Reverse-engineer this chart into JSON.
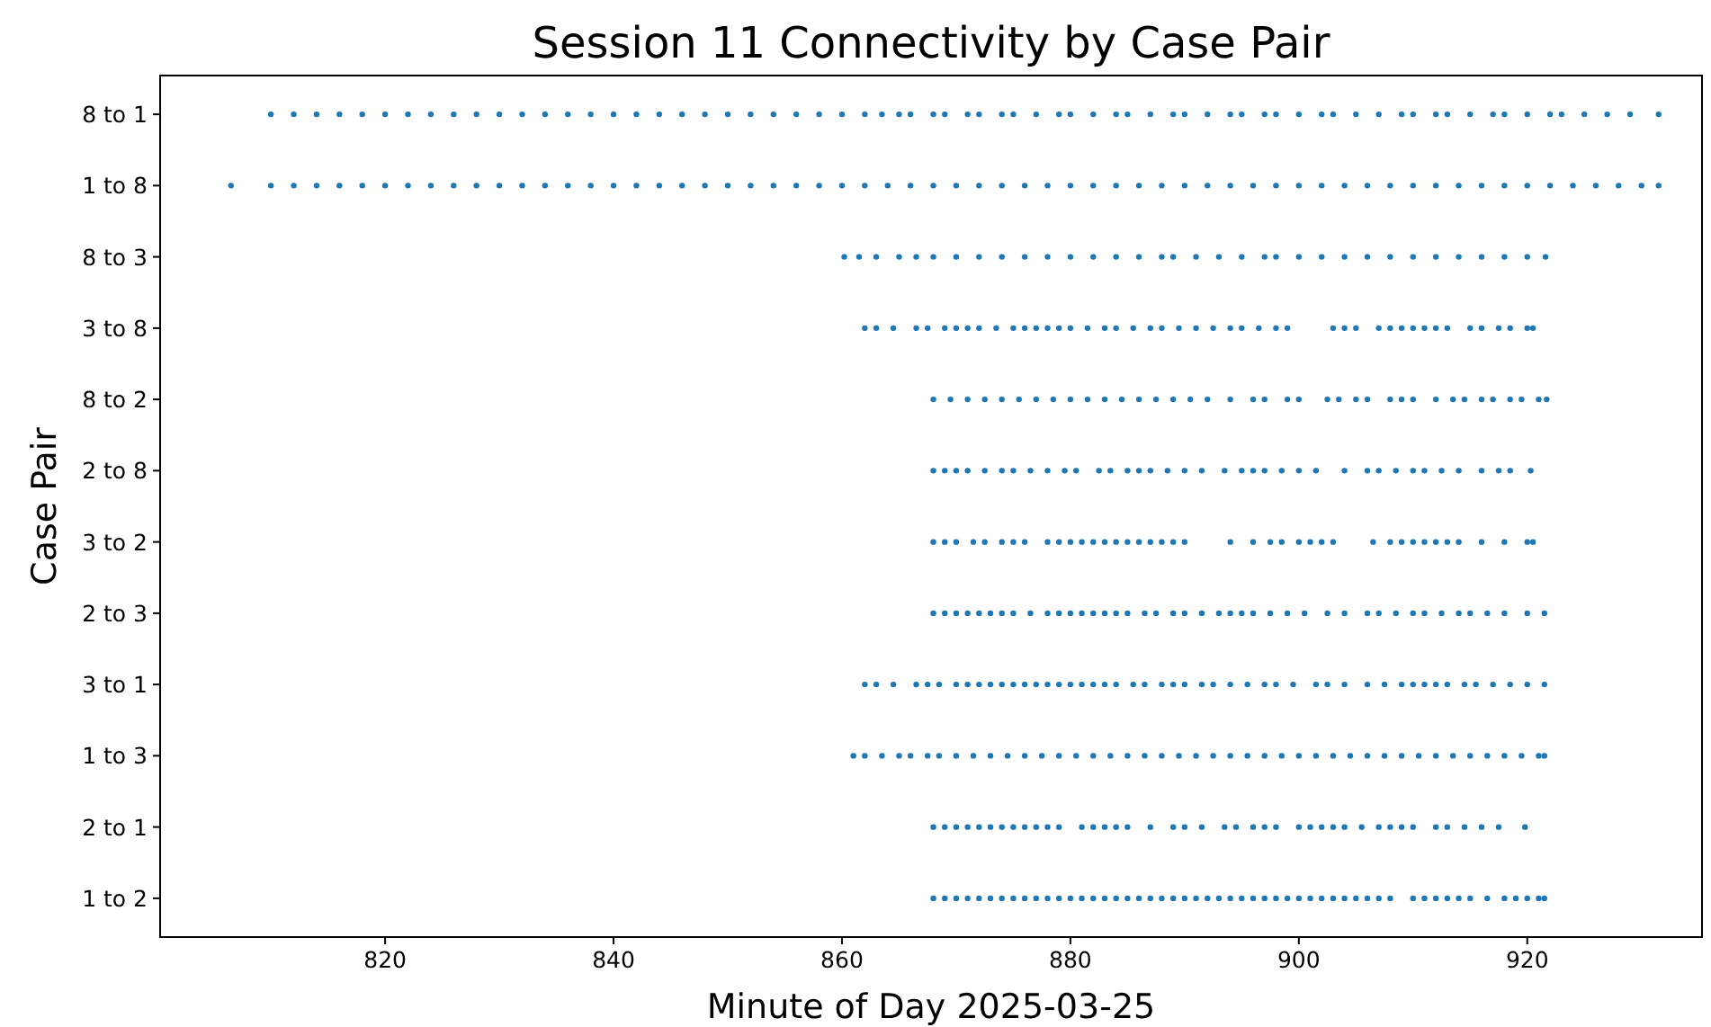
{
  "chart_data": {
    "type": "scatter",
    "title": "Session 11 Connectivity by Case Pair",
    "xlabel": "Minute of Day 2025-03-25",
    "ylabel": "Case Pair",
    "marker": "circle",
    "grid": false,
    "orientation": "horizontal",
    "categories": [
      "8 to 1",
      "1 to 8",
      "8 to 3",
      "3 to 8",
      "8 to 2",
      "2 to 8",
      "3 to 2",
      "2 to 3",
      "3 to 1",
      "1 to 3",
      "2 to 1",
      "1 to 2"
    ],
    "xlim": [
      800.3,
      935.3
    ],
    "xticks": [
      820,
      840,
      860,
      880,
      900,
      920
    ],
    "series": [
      {
        "color": "#1f77b4",
        "values": [
          810,
          812,
          814,
          816,
          818,
          820,
          822,
          824,
          826,
          828,
          830,
          832,
          834,
          836,
          838,
          840,
          842,
          844,
          846,
          848,
          850,
          852,
          854,
          856,
          858,
          860,
          862,
          863.5,
          865,
          866,
          868,
          869,
          871,
          872,
          874,
          875,
          877,
          879,
          880,
          882,
          884,
          885,
          887,
          889,
          890,
          892,
          894,
          895,
          897,
          898,
          900,
          902,
          903,
          905,
          907,
          909,
          910,
          912,
          913,
          915,
          917,
          918,
          920,
          922,
          923,
          925,
          927,
          929,
          931.5
        ],
        "x": [
          "8 to 1",
          "8 to 1",
          "8 to 1",
          "8 to 1",
          "8 to 1",
          "8 to 1",
          "8 to 1",
          "8 to 1",
          "8 to 1",
          "8 to 1",
          "8 to 1",
          "8 to 1",
          "8 to 1",
          "8 to 1",
          "8 to 1",
          "8 to 1",
          "8 to 1",
          "8 to 1",
          "8 to 1",
          "8 to 1",
          "8 to 1",
          "8 to 1",
          "8 to 1",
          "8 to 1",
          "8 to 1",
          "8 to 1",
          "8 to 1",
          "8 to 1",
          "8 to 1",
          "8 to 1",
          "8 to 1",
          "8 to 1",
          "8 to 1",
          "8 to 1",
          "8 to 1",
          "8 to 1",
          "8 to 1",
          "8 to 1",
          "8 to 1",
          "8 to 1",
          "8 to 1",
          "8 to 1",
          "8 to 1",
          "8 to 1",
          "8 to 1",
          "8 to 1",
          "8 to 1",
          "8 to 1",
          "8 to 1",
          "8 to 1",
          "8 to 1",
          "8 to 1",
          "8 to 1",
          "8 to 1",
          "8 to 1",
          "8 to 1",
          "8 to 1",
          "8 to 1",
          "8 to 1",
          "8 to 1",
          "8 to 1",
          "8 to 1",
          "8 to 1",
          "8 to 1",
          "8 to 1",
          "8 to 1",
          "8 to 1",
          "8 to 1",
          "8 to 1"
        ]
      },
      {
        "color": "#1f77b4",
        "values": [
          806.5,
          810,
          812,
          814,
          816,
          818,
          820,
          822,
          824,
          826,
          828,
          830,
          832,
          834,
          836,
          838,
          840,
          842,
          844,
          846,
          848,
          850,
          852,
          854,
          856,
          858,
          860,
          862,
          864,
          866,
          868,
          870,
          872,
          874,
          876,
          878,
          880,
          882,
          884,
          886,
          888,
          890,
          892,
          894,
          896,
          898,
          900,
          902,
          904,
          906,
          908,
          910,
          912,
          914,
          916,
          918,
          920,
          922,
          924,
          926,
          928,
          930,
          931.5
        ],
        "x": [
          "1 to 8",
          "1 to 8",
          "1 to 8",
          "1 to 8",
          "1 to 8",
          "1 to 8",
          "1 to 8",
          "1 to 8",
          "1 to 8",
          "1 to 8",
          "1 to 8",
          "1 to 8",
          "1 to 8",
          "1 to 8",
          "1 to 8",
          "1 to 8",
          "1 to 8",
          "1 to 8",
          "1 to 8",
          "1 to 8",
          "1 to 8",
          "1 to 8",
          "1 to 8",
          "1 to 8",
          "1 to 8",
          "1 to 8",
          "1 to 8",
          "1 to 8",
          "1 to 8",
          "1 to 8",
          "1 to 8",
          "1 to 8",
          "1 to 8",
          "1 to 8",
          "1 to 8",
          "1 to 8",
          "1 to 8",
          "1 to 8",
          "1 to 8",
          "1 to 8",
          "1 to 8",
          "1 to 8",
          "1 to 8",
          "1 to 8",
          "1 to 8",
          "1 to 8",
          "1 to 8",
          "1 to 8",
          "1 to 8",
          "1 to 8",
          "1 to 8",
          "1 to 8",
          "1 to 8",
          "1 to 8",
          "1 to 8",
          "1 to 8",
          "1 to 8",
          "1 to 8",
          "1 to 8",
          "1 to 8",
          "1 to 8",
          "1 to 8",
          "1 to 8"
        ]
      },
      {
        "color": "#1f77b4",
        "values": [
          860.2,
          861.5,
          863,
          865,
          866.5,
          868,
          870,
          872,
          874,
          876,
          878,
          880,
          882,
          884,
          886,
          888,
          889,
          891,
          893,
          895,
          897,
          898,
          900,
          902,
          904,
          906,
          908,
          910,
          912,
          914,
          916,
          918,
          920,
          921.6
        ],
        "x": [
          "8 to 3",
          "8 to 3",
          "8 to 3",
          "8 to 3",
          "8 to 3",
          "8 to 3",
          "8 to 3",
          "8 to 3",
          "8 to 3",
          "8 to 3",
          "8 to 3",
          "8 to 3",
          "8 to 3",
          "8 to 3",
          "8 to 3",
          "8 to 3",
          "8 to 3",
          "8 to 3",
          "8 to 3",
          "8 to 3",
          "8 to 3",
          "8 to 3",
          "8 to 3",
          "8 to 3",
          "8 to 3",
          "8 to 3",
          "8 to 3",
          "8 to 3",
          "8 to 3",
          "8 to 3",
          "8 to 3",
          "8 to 3",
          "8 to 3",
          "8 to 3"
        ]
      },
      {
        "color": "#1f77b4",
        "values": [
          862,
          863,
          864.5,
          866.5,
          867.5,
          869,
          870,
          871,
          872,
          873.5,
          875,
          876,
          877,
          878,
          879,
          880,
          881.5,
          883,
          884,
          885.5,
          887,
          888,
          889.5,
          891,
          892.5,
          894,
          895,
          896.5,
          898,
          899,
          903,
          904,
          905,
          907,
          908,
          909,
          910,
          911,
          912,
          913,
          915,
          916,
          917.5,
          918.5,
          920,
          920.5
        ],
        "x": [
          "3 to 8",
          "3 to 8",
          "3 to 8",
          "3 to 8",
          "3 to 8",
          "3 to 8",
          "3 to 8",
          "3 to 8",
          "3 to 8",
          "3 to 8",
          "3 to 8",
          "3 to 8",
          "3 to 8",
          "3 to 8",
          "3 to 8",
          "3 to 8",
          "3 to 8",
          "3 to 8",
          "3 to 8",
          "3 to 8",
          "3 to 8",
          "3 to 8",
          "3 to 8",
          "3 to 8",
          "3 to 8",
          "3 to 8",
          "3 to 8",
          "3 to 8",
          "3 to 8",
          "3 to 8",
          "3 to 8",
          "3 to 8",
          "3 to 8",
          "3 to 8",
          "3 to 8",
          "3 to 8",
          "3 to 8",
          "3 to 8",
          "3 to 8",
          "3 to 8",
          "3 to 8",
          "3 to 8",
          "3 to 8",
          "3 to 8",
          "3 to 8",
          "3 to 8"
        ]
      },
      {
        "color": "#1f77b4",
        "values": [
          868,
          869.5,
          871,
          872.5,
          874,
          875.5,
          877,
          878.5,
          880,
          881.5,
          883,
          884.5,
          886,
          887.5,
          889,
          890.5,
          892,
          894,
          896,
          897,
          899,
          900,
          902.5,
          903.5,
          905,
          906,
          908,
          909,
          910,
          912,
          913.5,
          914.5,
          916,
          917,
          918.5,
          919.5,
          921,
          921.7
        ],
        "x": [
          "8 to 2",
          "8 to 2",
          "8 to 2",
          "8 to 2",
          "8 to 2",
          "8 to 2",
          "8 to 2",
          "8 to 2",
          "8 to 2",
          "8 to 2",
          "8 to 2",
          "8 to 2",
          "8 to 2",
          "8 to 2",
          "8 to 2",
          "8 to 2",
          "8 to 2",
          "8 to 2",
          "8 to 2",
          "8 to 2",
          "8 to 2",
          "8 to 2",
          "8 to 2",
          "8 to 2",
          "8 to 2",
          "8 to 2",
          "8 to 2",
          "8 to 2",
          "8 to 2",
          "8 to 2",
          "8 to 2",
          "8 to 2",
          "8 to 2",
          "8 to 2",
          "8 to 2",
          "8 to 2",
          "8 to 2",
          "8 to 2"
        ]
      },
      {
        "color": "#1f77b4",
        "values": [
          868,
          869,
          870,
          871,
          872.5,
          874,
          875,
          876.5,
          878,
          879.5,
          880.5,
          882.5,
          883.5,
          885,
          886,
          887,
          888.5,
          890,
          891.5,
          893.5,
          895,
          896,
          897,
          898.5,
          900,
          901.5,
          904,
          906,
          907,
          908.5,
          910,
          911,
          912.5,
          914,
          916,
          917.5,
          918.5,
          920.3
        ],
        "x": [
          "2 to 8",
          "2 to 8",
          "2 to 8",
          "2 to 8",
          "2 to 8",
          "2 to 8",
          "2 to 8",
          "2 to 8",
          "2 to 8",
          "2 to 8",
          "2 to 8",
          "2 to 8",
          "2 to 8",
          "2 to 8",
          "2 to 8",
          "2 to 8",
          "2 to 8",
          "2 to 8",
          "2 to 8",
          "2 to 8",
          "2 to 8",
          "2 to 8",
          "2 to 8",
          "2 to 8",
          "2 to 8",
          "2 to 8",
          "2 to 8",
          "2 to 8",
          "2 to 8",
          "2 to 8",
          "2 to 8",
          "2 to 8",
          "2 to 8",
          "2 to 8",
          "2 to 8",
          "2 to 8",
          "2 to 8",
          "2 to 8"
        ]
      },
      {
        "color": "#1f77b4",
        "values": [
          868,
          869,
          870,
          871.5,
          872.5,
          874,
          875,
          876,
          878,
          879,
          880,
          881,
          882,
          883,
          884,
          885,
          886,
          887,
          888,
          889,
          890,
          894,
          896,
          897.5,
          898.5,
          900,
          901,
          902,
          903,
          906.5,
          908,
          909,
          910,
          911,
          912,
          913,
          914,
          916,
          918,
          920,
          920.5
        ],
        "x": [
          "3 to 2",
          "3 to 2",
          "3 to 2",
          "3 to 2",
          "3 to 2",
          "3 to 2",
          "3 to 2",
          "3 to 2",
          "3 to 2",
          "3 to 2",
          "3 to 2",
          "3 to 2",
          "3 to 2",
          "3 to 2",
          "3 to 2",
          "3 to 2",
          "3 to 2",
          "3 to 2",
          "3 to 2",
          "3 to 2",
          "3 to 2",
          "3 to 2",
          "3 to 2",
          "3 to 2",
          "3 to 2",
          "3 to 2",
          "3 to 2",
          "3 to 2",
          "3 to 2",
          "3 to 2",
          "3 to 2",
          "3 to 2",
          "3 to 2",
          "3 to 2",
          "3 to 2",
          "3 to 2",
          "3 to 2",
          "3 to 2",
          "3 to 2",
          "3 to 2",
          "3 to 2"
        ]
      },
      {
        "color": "#1f77b4",
        "values": [
          868,
          869,
          870,
          871,
          872,
          873,
          874,
          875,
          876.5,
          878,
          879,
          880,
          881,
          882,
          883,
          884,
          885,
          886.5,
          887.5,
          889,
          890,
          891.5,
          893,
          894,
          895,
          896,
          897.5,
          899,
          900.5,
          902.5,
          904,
          906,
          907,
          908.5,
          910,
          911,
          912.5,
          914,
          915,
          916.5,
          918,
          920,
          921.5
        ],
        "x": [
          "2 to 3",
          "2 to 3",
          "2 to 3",
          "2 to 3",
          "2 to 3",
          "2 to 3",
          "2 to 3",
          "2 to 3",
          "2 to 3",
          "2 to 3",
          "2 to 3",
          "2 to 3",
          "2 to 3",
          "2 to 3",
          "2 to 3",
          "2 to 3",
          "2 to 3",
          "2 to 3",
          "2 to 3",
          "2 to 3",
          "2 to 3",
          "2 to 3",
          "2 to 3",
          "2 to 3",
          "2 to 3",
          "2 to 3",
          "2 to 3",
          "2 to 3",
          "2 to 3",
          "2 to 3",
          "2 to 3",
          "2 to 3",
          "2 to 3",
          "2 to 3",
          "2 to 3",
          "2 to 3",
          "2 to 3",
          "2 to 3",
          "2 to 3",
          "2 to 3",
          "2 to 3",
          "2 to 3",
          "2 to 3"
        ]
      },
      {
        "color": "#1f77b4",
        "values": [
          862,
          863,
          864.5,
          866.5,
          867.5,
          868.5,
          870,
          871,
          872,
          873,
          874,
          875,
          876,
          877,
          878,
          879,
          880,
          881,
          882,
          883,
          884,
          885.5,
          886.5,
          888,
          889,
          890,
          891.5,
          892.5,
          894,
          895.5,
          897,
          898,
          899.5,
          901.5,
          902.5,
          904,
          906,
          907.5,
          909,
          910,
          911,
          912,
          913,
          914.5,
          915.5,
          917,
          918.5,
          920,
          921.5
        ],
        "x": [
          "3 to 1",
          "3 to 1",
          "3 to 1",
          "3 to 1",
          "3 to 1",
          "3 to 1",
          "3 to 1",
          "3 to 1",
          "3 to 1",
          "3 to 1",
          "3 to 1",
          "3 to 1",
          "3 to 1",
          "3 to 1",
          "3 to 1",
          "3 to 1",
          "3 to 1",
          "3 to 1",
          "3 to 1",
          "3 to 1",
          "3 to 1",
          "3 to 1",
          "3 to 1",
          "3 to 1",
          "3 to 1",
          "3 to 1",
          "3 to 1",
          "3 to 1",
          "3 to 1",
          "3 to 1",
          "3 to 1",
          "3 to 1",
          "3 to 1",
          "3 to 1",
          "3 to 1",
          "3 to 1",
          "3 to 1",
          "3 to 1",
          "3 to 1",
          "3 to 1",
          "3 to 1",
          "3 to 1",
          "3 to 1",
          "3 to 1",
          "3 to 1",
          "3 to 1",
          "3 to 1",
          "3 to 1",
          "3 to 1"
        ]
      },
      {
        "color": "#1f77b4",
        "values": [
          861,
          862,
          863.5,
          865,
          866,
          867.5,
          868.5,
          870,
          871.5,
          873,
          874.5,
          876,
          877.5,
          879,
          880.5,
          882,
          883.5,
          885,
          886.5,
          888,
          889.5,
          891,
          892.5,
          894,
          895.5,
          897,
          898.5,
          900,
          901.5,
          903,
          904.5,
          906,
          907.5,
          909,
          910.5,
          912,
          913.5,
          915,
          916.5,
          918,
          919.5,
          921,
          921.5
        ],
        "x": [
          "1 to 3",
          "1 to 3",
          "1 to 3",
          "1 to 3",
          "1 to 3",
          "1 to 3",
          "1 to 3",
          "1 to 3",
          "1 to 3",
          "1 to 3",
          "1 to 3",
          "1 to 3",
          "1 to 3",
          "1 to 3",
          "1 to 3",
          "1 to 3",
          "1 to 3",
          "1 to 3",
          "1 to 3",
          "1 to 3",
          "1 to 3",
          "1 to 3",
          "1 to 3",
          "1 to 3",
          "1 to 3",
          "1 to 3",
          "1 to 3",
          "1 to 3",
          "1 to 3",
          "1 to 3",
          "1 to 3",
          "1 to 3",
          "1 to 3",
          "1 to 3",
          "1 to 3",
          "1 to 3",
          "1 to 3",
          "1 to 3",
          "1 to 3",
          "1 to 3",
          "1 to 3",
          "1 to 3",
          "1 to 3"
        ]
      },
      {
        "color": "#1f77b4",
        "values": [
          868,
          869,
          870,
          871,
          872,
          873,
          874,
          875,
          876,
          877,
          878,
          879,
          881,
          882,
          883,
          884,
          885,
          887,
          889,
          890,
          891.5,
          893.5,
          894.5,
          896,
          897,
          898,
          900,
          901,
          902,
          903,
          904,
          905.5,
          907,
          908,
          909,
          910,
          912,
          913,
          914.5,
          916,
          917.5,
          919.8
        ],
        "x": [
          "2 to 1",
          "2 to 1",
          "2 to 1",
          "2 to 1",
          "2 to 1",
          "2 to 1",
          "2 to 1",
          "2 to 1",
          "2 to 1",
          "2 to 1",
          "2 to 1",
          "2 to 1",
          "2 to 1",
          "2 to 1",
          "2 to 1",
          "2 to 1",
          "2 to 1",
          "2 to 1",
          "2 to 1",
          "2 to 1",
          "2 to 1",
          "2 to 1",
          "2 to 1",
          "2 to 1",
          "2 to 1",
          "2 to 1",
          "2 to 1",
          "2 to 1",
          "2 to 1",
          "2 to 1",
          "2 to 1",
          "2 to 1",
          "2 to 1",
          "2 to 1",
          "2 to 1",
          "2 to 1",
          "2 to 1",
          "2 to 1",
          "2 to 1",
          "2 to 1",
          "2 to 1",
          "2 to 1"
        ]
      },
      {
        "color": "#1f77b4",
        "values": [
          868,
          869,
          870,
          871,
          872,
          873,
          874,
          875,
          876,
          877,
          878,
          879,
          880,
          881,
          882,
          883,
          884,
          885,
          886,
          887,
          888,
          889,
          890,
          891,
          892,
          893,
          894,
          895,
          896,
          897,
          898,
          899,
          900,
          901,
          902,
          903,
          904,
          905,
          906,
          907,
          908,
          910,
          911,
          912,
          913,
          914,
          915,
          916.5,
          918,
          919,
          920,
          921,
          921.5
        ],
        "x": [
          "1 to 2",
          "1 to 2",
          "1 to 2",
          "1 to 2",
          "1 to 2",
          "1 to 2",
          "1 to 2",
          "1 to 2",
          "1 to 2",
          "1 to 2",
          "1 to 2",
          "1 to 2",
          "1 to 2",
          "1 to 2",
          "1 to 2",
          "1 to 2",
          "1 to 2",
          "1 to 2",
          "1 to 2",
          "1 to 2",
          "1 to 2",
          "1 to 2",
          "1 to 2",
          "1 to 2",
          "1 to 2",
          "1 to 2",
          "1 to 2",
          "1 to 2",
          "1 to 2",
          "1 to 2",
          "1 to 2",
          "1 to 2",
          "1 to 2",
          "1 to 2",
          "1 to 2",
          "1 to 2",
          "1 to 2",
          "1 to 2",
          "1 to 2",
          "1 to 2",
          "1 to 2",
          "1 to 2",
          "1 to 2",
          "1 to 2",
          "1 to 2",
          "1 to 2",
          "1 to 2",
          "1 to 2",
          "1 to 2",
          "1 to 2",
          "1 to 2",
          "1 to 2",
          "1 to 2"
        ]
      }
    ]
  }
}
